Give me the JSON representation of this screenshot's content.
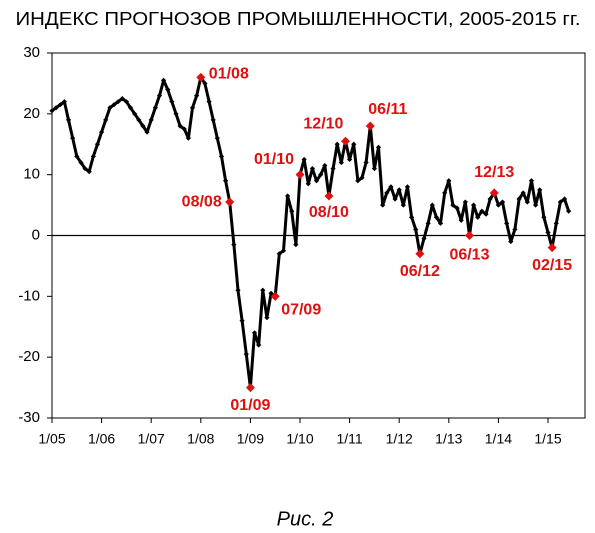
{
  "chart_data": {
    "type": "line",
    "title": "ИНДЕКС ПРОГНОЗОВ ПРОМЫШЛЕННОСТИ, 2005-2015 гг.",
    "categories": [
      "1/05",
      null,
      null,
      null,
      null,
      null,
      null,
      null,
      null,
      null,
      null,
      null,
      "1/06",
      null,
      null,
      null,
      null,
      null,
      null,
      null,
      null,
      null,
      null,
      null,
      "1/07",
      null,
      null,
      null,
      null,
      null,
      null,
      null,
      null,
      null,
      null,
      null,
      "1/08",
      null,
      null,
      null,
      null,
      null,
      null,
      null,
      null,
      null,
      null,
      null,
      "1/09",
      null,
      null,
      null,
      null,
      null,
      null,
      null,
      null,
      null,
      null,
      null,
      "1/10",
      null,
      null,
      null,
      null,
      null,
      null,
      null,
      null,
      null,
      null,
      null,
      "1/11",
      null,
      null,
      null,
      null,
      null,
      null,
      null,
      null,
      null,
      null,
      null,
      "1/12",
      null,
      null,
      null,
      null,
      null,
      null,
      null,
      null,
      null,
      null,
      null,
      "1/13",
      null,
      null,
      null,
      null,
      null,
      null,
      null,
      null,
      null,
      null,
      null,
      "1/14",
      null,
      null,
      null,
      null,
      null,
      null,
      null,
      null,
      null,
      null,
      null,
      "1/15",
      null,
      null,
      null,
      null,
      null
    ],
    "series": [
      {
        "color": "#000000",
        "values": [
          20.5,
          21,
          21.5,
          22,
          19,
          16,
          13,
          12,
          11,
          10.5,
          13,
          15,
          17,
          19,
          21,
          21.5,
          22,
          22.5,
          22,
          21,
          20,
          19,
          18,
          17,
          19,
          21,
          23,
          25.5,
          24,
          22,
          20,
          18,
          17.5,
          16,
          21,
          23,
          26,
          25,
          22,
          19,
          16,
          13,
          9,
          5.5,
          -1.5,
          -9,
          -14,
          -19.5,
          -25,
          -16,
          -18,
          -9,
          -13.5,
          -9.5,
          -10,
          -3,
          -2.5,
          6.5,
          4,
          -1.5,
          10,
          12.5,
          8.5,
          11,
          9,
          10,
          11.5,
          6.5,
          11,
          15,
          12,
          15.5,
          12.5,
          15,
          9,
          9.5,
          12,
          18,
          11,
          14.5,
          5,
          7,
          8,
          6,
          7.5,
          5,
          8,
          3,
          1,
          -3,
          -0.5,
          2,
          5,
          3,
          2,
          7,
          9,
          5,
          4.5,
          2.5,
          5.5,
          0,
          5,
          3,
          4,
          3.5,
          6,
          7,
          5,
          5.5,
          2,
          -1,
          1,
          6,
          7,
          5.5,
          9,
          5,
          7.5,
          3,
          0.5,
          -2,
          2,
          5.5,
          6,
          4
        ]
      }
    ],
    "annotations": [
      {
        "text": "01/08"
      },
      {
        "text": "08/08"
      },
      {
        "text": "01/09"
      },
      {
        "text": "07/09"
      },
      {
        "text": "01/10"
      },
      {
        "text": "08/10"
      },
      {
        "text": "12/10"
      },
      {
        "text": "06/11"
      },
      {
        "text": "06/12"
      },
      {
        "text": "06/13"
      },
      {
        "text": "12/13"
      },
      {
        "text": "02/15"
      }
    ],
    "annotation_color": "#e01010",
    "ylim": [
      -30,
      30
    ],
    "yticks": [
      -30,
      -20,
      -10,
      0,
      10,
      20,
      30
    ]
  },
  "caption": "Рис. 2"
}
